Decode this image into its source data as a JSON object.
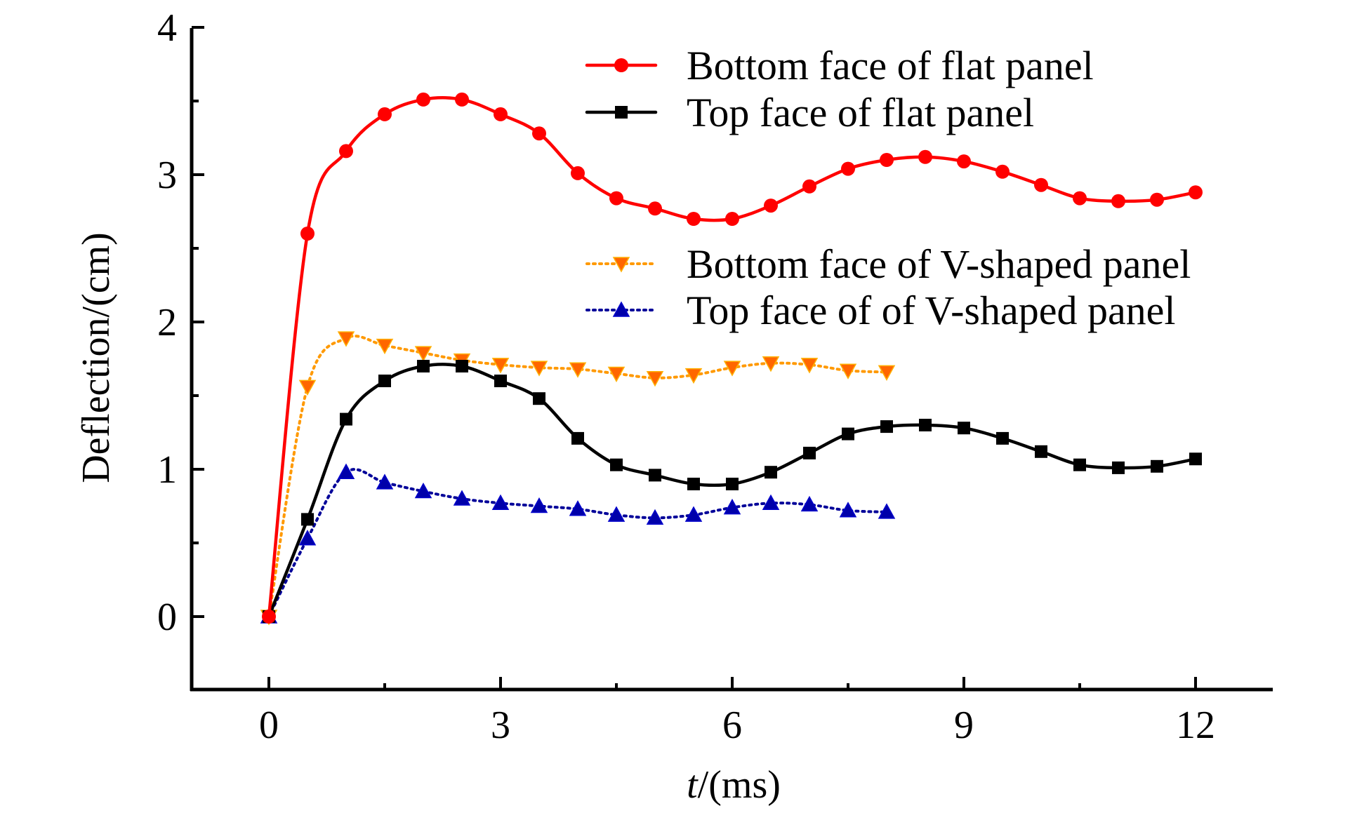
{
  "chart_data": {
    "type": "line",
    "title": "",
    "xlabel_italic": "t",
    "xlabel_rest": "/(ms)",
    "ylabel": "Deflection/(cm)",
    "xlim": [
      -1,
      13
    ],
    "ylim": [
      -0.5,
      4
    ],
    "x_major_ticks": [
      0,
      3,
      6,
      9,
      12
    ],
    "x_minor_ticks": [
      1.5,
      4.5,
      7.5,
      10.5
    ],
    "y_major_ticks": [
      0,
      1,
      2,
      3,
      4
    ],
    "y_minor_ticks": [
      0.5,
      1.5,
      2.5,
      3.5
    ],
    "x_tick_labels": [
      "0",
      "3",
      "6",
      "9",
      "12"
    ],
    "y_tick_labels": [
      "0",
      "1",
      "2",
      "3",
      "4"
    ],
    "grid": false,
    "legend_placement": "top-right",
    "series": [
      {
        "name": "Bottom face of flat panel",
        "color": "#ff0000",
        "marker": "circle",
        "line_style": "solid",
        "x": [
          0,
          0.5,
          1,
          1.5,
          2,
          2.5,
          3,
          3.5,
          4,
          4.5,
          5,
          5.5,
          6,
          6.5,
          7,
          7.5,
          8,
          8.5,
          9,
          9.5,
          10,
          10.5,
          11,
          11.5,
          12
        ],
        "y": [
          0,
          2.6,
          3.16,
          3.41,
          3.51,
          3.51,
          3.41,
          3.28,
          3.01,
          2.84,
          2.77,
          2.7,
          2.7,
          2.79,
          2.92,
          3.04,
          3.1,
          3.12,
          3.09,
          3.02,
          2.93,
          2.84,
          2.82,
          2.83,
          2.88
        ]
      },
      {
        "name": "Top face of flat panel",
        "color": "#000000",
        "marker": "square",
        "line_style": "solid",
        "x": [
          0,
          0.5,
          1,
          1.5,
          2,
          2.5,
          3,
          3.5,
          4,
          4.5,
          5,
          5.5,
          6,
          6.5,
          7,
          7.5,
          8,
          8.5,
          9,
          9.5,
          10,
          10.5,
          11,
          11.5,
          12
        ],
        "y": [
          0,
          0.66,
          1.34,
          1.6,
          1.7,
          1.7,
          1.6,
          1.48,
          1.21,
          1.03,
          0.96,
          0.9,
          0.9,
          0.98,
          1.11,
          1.24,
          1.29,
          1.3,
          1.28,
          1.21,
          1.12,
          1.03,
          1.01,
          1.02,
          1.07
        ]
      },
      {
        "name": "Bottom face of V-shaped panel",
        "color": "#ff9900",
        "marker_fill": "#ff6600",
        "marker": "triangle-down",
        "line_style": "dotted",
        "x": [
          0,
          0.5,
          1,
          1.5,
          2,
          2.5,
          3,
          3.5,
          4,
          4.5,
          5,
          5.5,
          6,
          6.5,
          7,
          7.5,
          8
        ],
        "y": [
          0,
          1.56,
          1.89,
          1.84,
          1.79,
          1.74,
          1.71,
          1.69,
          1.68,
          1.65,
          1.62,
          1.64,
          1.69,
          1.72,
          1.71,
          1.67,
          1.66
        ]
      },
      {
        "name": "Top face of of V-shaped panel",
        "color": "#000099",
        "marker_fill": "#0000aa",
        "marker": "triangle-up",
        "line_style": "dotted",
        "x": [
          0,
          0.5,
          1,
          1.5,
          2,
          2.5,
          3,
          3.5,
          4,
          4.5,
          5,
          5.5,
          6,
          6.5,
          7,
          7.5,
          8
        ],
        "y": [
          0,
          0.53,
          0.98,
          0.91,
          0.85,
          0.8,
          0.77,
          0.75,
          0.73,
          0.69,
          0.67,
          0.69,
          0.74,
          0.77,
          0.76,
          0.72,
          0.71
        ]
      }
    ]
  }
}
